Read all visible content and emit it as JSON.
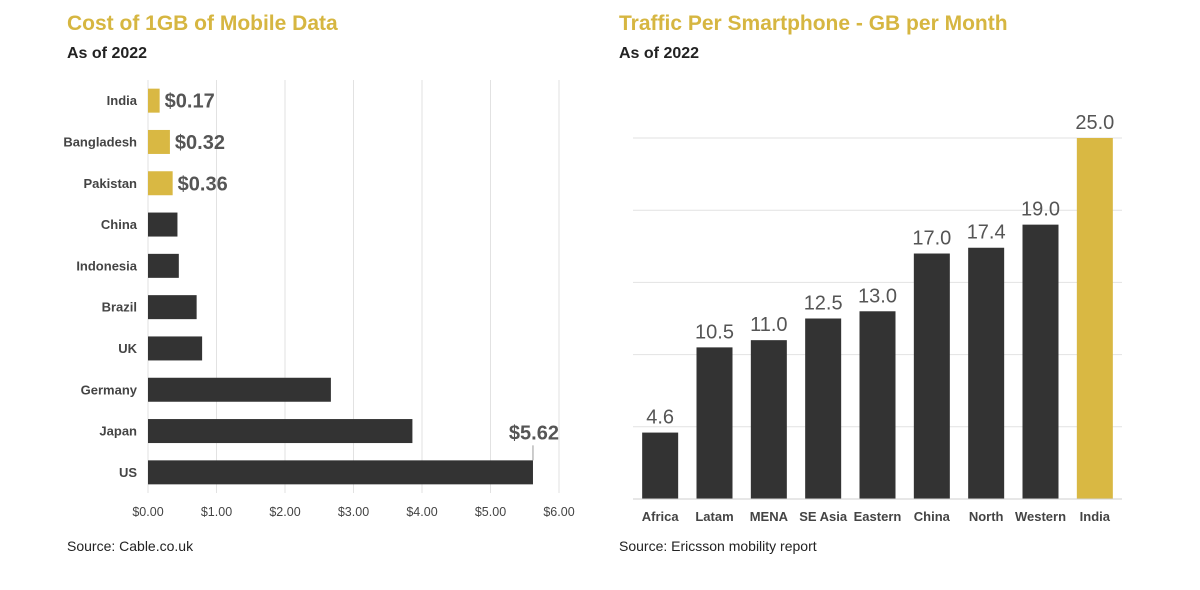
{
  "chart_data": [
    {
      "type": "bar",
      "orientation": "horizontal",
      "title": "Cost of 1GB of Mobile Data",
      "subtitle": "As of 2022",
      "source": "Source:  Cable.co.uk",
      "categories": [
        "India",
        "Bangladesh",
        "Pakistan",
        "China",
        "Indonesia",
        "Brazil",
        "UK",
        "Germany",
        "Japan",
        "US"
      ],
      "values": [
        0.17,
        0.32,
        0.36,
        0.43,
        0.45,
        0.71,
        0.79,
        2.67,
        3.86,
        5.62
      ],
      "data_labels": [
        "$0.17",
        "$0.32",
        "$0.36",
        "",
        "",
        "",
        "",
        "",
        "",
        "$5.62"
      ],
      "highlight": [
        true,
        true,
        true,
        false,
        false,
        false,
        false,
        false,
        false,
        false
      ],
      "xlim": [
        0,
        6
      ],
      "x_ticks": [
        "$0.00",
        "$1.00",
        "$2.00",
        "$3.00",
        "$4.00",
        "$5.00",
        "$6.00"
      ],
      "grid": true,
      "colors": {
        "highlight": "#d9b843",
        "default": "#333333",
        "grid": "#e2e2e2"
      }
    },
    {
      "type": "bar",
      "orientation": "vertical",
      "title": "Traffic Per Smartphone - GB per Month",
      "subtitle": "As of 2022",
      "source": "Source:  Ericsson mobility report",
      "categories": [
        "Africa",
        "Latam",
        "MENA",
        "SE Asia",
        "Eastern",
        "China",
        "North",
        "Western",
        "India"
      ],
      "values": [
        4.6,
        10.5,
        11.0,
        12.5,
        13.0,
        17.0,
        17.4,
        19.0,
        25.0
      ],
      "data_labels": [
        "4.6",
        "10.5",
        "11.0",
        "12.5",
        "13.0",
        "17.0",
        "17.4",
        "19.0",
        "25.0"
      ],
      "highlight": [
        false,
        false,
        false,
        false,
        false,
        false,
        false,
        false,
        true
      ],
      "ylim": [
        0,
        25
      ],
      "grid": true,
      "colors": {
        "highlight": "#d9b843",
        "default": "#333333",
        "grid": "#e2e2e2"
      }
    }
  ]
}
